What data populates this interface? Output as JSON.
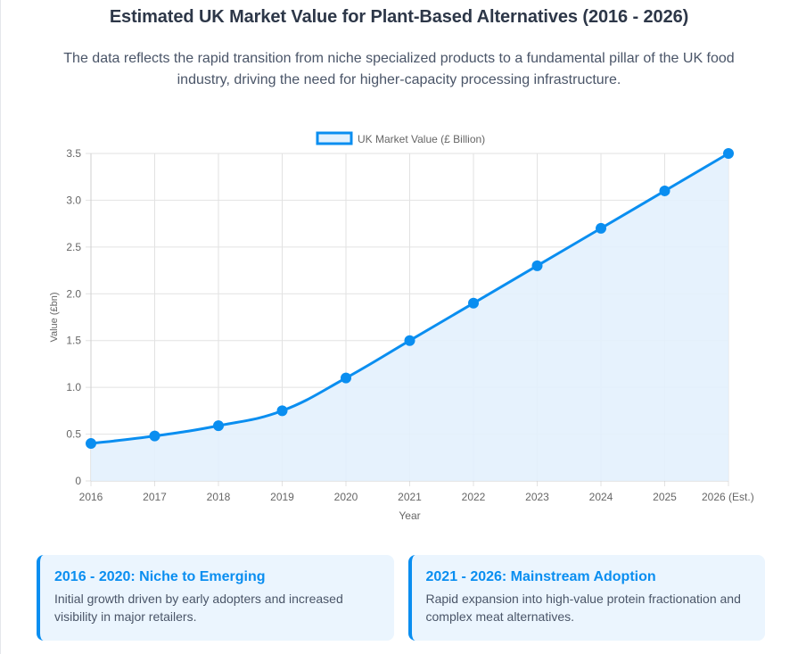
{
  "header": {
    "title": "Estimated UK Market Value for Plant-Based Alternatives (2016 - 2026)",
    "subtitle": "The data reflects the rapid transition from niche specialized products to a fundamental pillar of the UK food industry, driving the need for higher-capacity processing infrastructure."
  },
  "chart_data": {
    "type": "line",
    "title": "",
    "categories": [
      "2016",
      "2017",
      "2018",
      "2019",
      "2020",
      "2021",
      "2022",
      "2023",
      "2024",
      "2025",
      "2026 (Est.)"
    ],
    "series": [
      {
        "name": "UK Market Value (£ Billion)",
        "values": [
          0.4,
          0.48,
          0.59,
          0.75,
          1.1,
          1.5,
          1.9,
          2.3,
          2.7,
          3.1,
          3.5
        ],
        "color": "#0a8ef0",
        "fill": "#e3f1fd"
      }
    ],
    "xlabel": "Year",
    "ylabel": "Value (£bn)",
    "ylim": [
      0,
      3.5
    ],
    "yticks": [
      "0",
      "0.5",
      "1.0",
      "1.5",
      "2.0",
      "2.5",
      "3.0",
      "3.5"
    ],
    "ytick_values": [
      0,
      0.5,
      1.0,
      1.5,
      2.0,
      2.5,
      3.0,
      3.5
    ],
    "grid": true,
    "legend": "top-center",
    "filled_area": true
  },
  "cards": [
    {
      "title": "2016 - 2020: Niche to Emerging",
      "text": "Initial growth driven by early adopters and increased visibility in major retailers."
    },
    {
      "title": "2021 - 2026: Mainstream Adoption",
      "text": "Rapid expansion into high-value protein fractionation and complex meat alternatives."
    }
  ]
}
